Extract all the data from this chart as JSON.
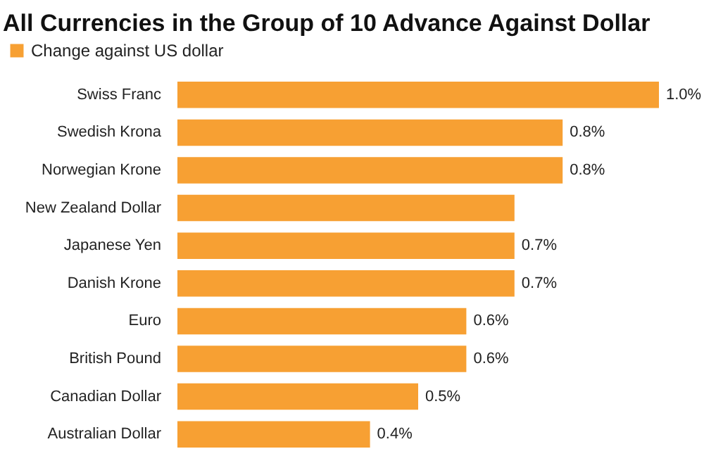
{
  "chart_data": {
    "type": "bar",
    "orientation": "horizontal",
    "title": "All Currencies in the Group of 10 Advance Against Dollar",
    "categories": [
      "Swiss Franc",
      "Swedish Krona",
      "Norwegian Krone",
      "New Zealand Dollar",
      "Japanese Yen",
      "Danish Krone",
      "Euro",
      "British Pound",
      "Canadian Dollar",
      "Australian Dollar"
    ],
    "series": [
      {
        "name": "Change against US dollar",
        "color": "#f7a033",
        "values": [
          1.0,
          0.8,
          0.8,
          0.7,
          0.7,
          0.7,
          0.6,
          0.6,
          0.5,
          0.4
        ],
        "value_labels": [
          "1.0%",
          "0.8%",
          "0.8%",
          null,
          "0.7%",
          "0.7%",
          "0.6%",
          "0.6%",
          "0.5%",
          "0.4%"
        ]
      }
    ],
    "legend": "top left"
  }
}
